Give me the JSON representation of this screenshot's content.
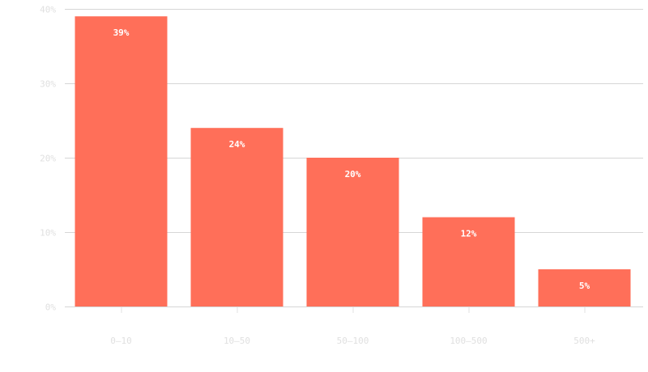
{
  "chart_data": {
    "type": "bar",
    "categories": [
      "0–10",
      "10–50",
      "50–100",
      "100–500",
      "500+"
    ],
    "values": [
      39,
      24,
      20,
      12,
      5
    ],
    "value_labels": [
      "39%",
      "24%",
      "20%",
      "12%",
      "5%"
    ],
    "ylim": [
      0,
      40
    ],
    "yticks": [
      0,
      10,
      20,
      30,
      40
    ],
    "ytick_labels": [
      "0%",
      "10%",
      "20%",
      "30%",
      "40%"
    ],
    "grid": true,
    "bar_color": "#ff6f59",
    "gridline_color": "#d6d6d6",
    "tick_label_color": "#e0e0e0",
    "data_label_color": "#ffffff"
  }
}
